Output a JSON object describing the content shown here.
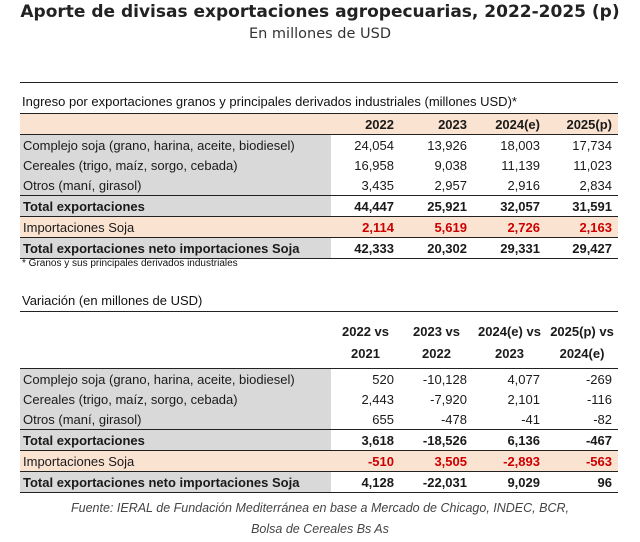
{
  "title": "Aporte de divisas exportaciones agropecuarias, 2022-2025 (p)",
  "subtitle": "En millones de USD",
  "table1": {
    "caption": "Ingreso por exportaciones granos y principales derivados industriales (millones USD)*",
    "columns": [
      "2022",
      "2023",
      "2024(e)",
      "2025(p)"
    ],
    "rows": [
      {
        "label": "Complejo soja (grano, harina, aceite, biodiesel)",
        "values": [
          "24,054",
          "13,926",
          "18,003",
          "17,734"
        ]
      },
      {
        "label": "Cereales (trigo, maíz, sorgo, cebada)",
        "values": [
          "16,958",
          "9,038",
          "11,139",
          "11,023"
        ]
      },
      {
        "label": "Otros (maní, girasol)",
        "values": [
          "3,435",
          "2,957",
          "2,916",
          "2,834"
        ]
      },
      {
        "label": "Total exportaciones",
        "values": [
          "44,447",
          "25,921",
          "32,057",
          "31,591"
        ]
      },
      {
        "label": "Importaciones Soja",
        "values": [
          "2,114",
          "5,619",
          "2,726",
          "2,163"
        ]
      },
      {
        "label": "Total exportaciones neto importaciones Soja",
        "values": [
          "42,333",
          "20,302",
          "29,331",
          "29,427"
        ]
      }
    ],
    "footnote": "* Granos y sus principales derivados industriales"
  },
  "table2": {
    "caption": "Variación (en millones de USD)",
    "columns": [
      {
        "l1": "2022 vs",
        "l2": "2021"
      },
      {
        "l1": "2023 vs",
        "l2": "2022"
      },
      {
        "l1": "2024(e) vs",
        "l2": "2023"
      },
      {
        "l1": "2025(p) vs",
        "l2": "2024(e)"
      }
    ],
    "rows": [
      {
        "label": "Complejo soja (grano, harina, aceite, biodiesel)",
        "values": [
          "520",
          "-10,128",
          "4,077",
          "-269"
        ]
      },
      {
        "label": "Cereales (trigo, maíz, sorgo, cebada)",
        "values": [
          "2,443",
          "-7,920",
          "2,101",
          "-116"
        ]
      },
      {
        "label": "Otros (maní, girasol)",
        "values": [
          "655",
          "-478",
          "-41",
          "-82"
        ]
      },
      {
        "label": "Total exportaciones",
        "values": [
          "3,618",
          "-18,526",
          "6,136",
          "-467"
        ]
      },
      {
        "label": "Importaciones Soja",
        "values": [
          "-510",
          "3,505",
          "-2,893",
          "-563"
        ]
      },
      {
        "label": "Total exportaciones neto importaciones Soja",
        "values": [
          "4,128",
          "-22,031",
          "9,029",
          "96"
        ]
      }
    ]
  },
  "source": {
    "line1": "Fuente: IERAL de Fundación Mediterránea en base a Mercado de Chicago, INDEC, BCR,",
    "line2": "Bolsa de Cereales Bs As"
  }
}
